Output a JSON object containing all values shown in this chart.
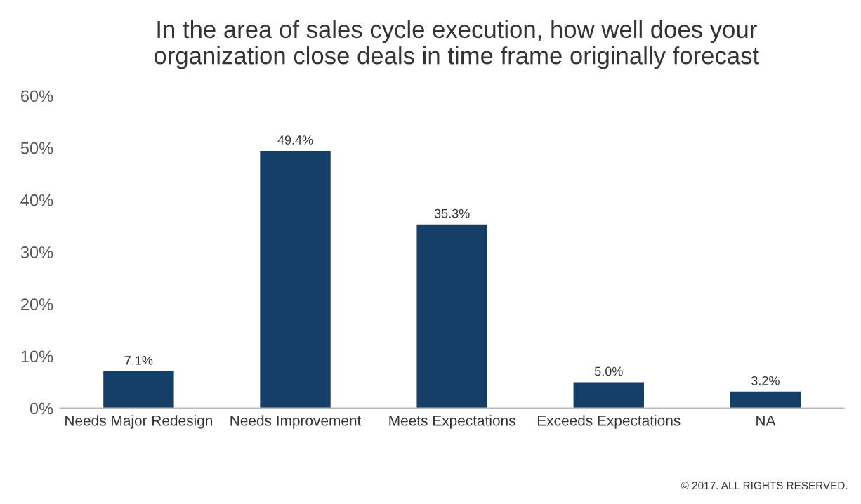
{
  "chart_data": {
    "type": "bar",
    "title": "In the area of sales cycle execution, how well does your\norganization close deals in time frame originally forecast",
    "categories": [
      "Needs Major Redesign",
      "Needs Improvement",
      "Meets Expectations",
      "Exceeds Expectations",
      "NA"
    ],
    "values": [
      7.1,
      49.4,
      35.3,
      5.0,
      3.2
    ],
    "value_labels": [
      "7.1%",
      "49.4%",
      "35.3%",
      "5.0%",
      "3.2%"
    ],
    "color": "#163f68",
    "ylim": [
      0,
      60
    ],
    "yticks": [
      {
        "value": 0,
        "label": "0%"
      },
      {
        "value": 10,
        "label": "10%"
      },
      {
        "value": 20,
        "label": "20%"
      },
      {
        "value": 30,
        "label": "30%"
      },
      {
        "value": 40,
        "label": "40%"
      },
      {
        "value": 50,
        "label": "50%"
      },
      {
        "value": 60,
        "label": "60%"
      }
    ],
    "grid": false,
    "legend": false,
    "annotations": [
      "© 2017. ALL RIGHTS RESERVED."
    ]
  }
}
